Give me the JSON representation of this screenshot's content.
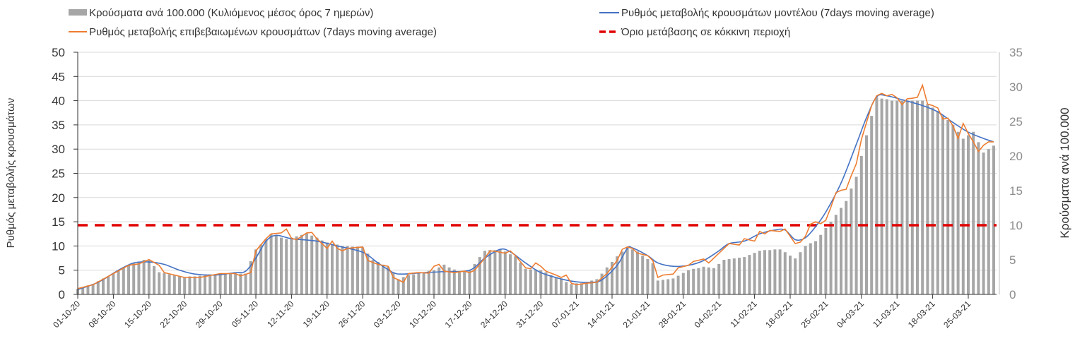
{
  "chart_data": {
    "type": "bar+line",
    "legend": {
      "placement": "top",
      "bars": "Κρούσματα ανά 100.000 (Κυλιόμενος μέσος όρος 7 ημερών)",
      "model": "Ρυθμός μεταβολής κρουσμάτων μοντέλου (7days moving average)",
      "confirmed": "Ρυθμός μεταβολής επιβεβαιωμένων κρουσμάτων (7days moving average)",
      "threshold": "Όριο μετάβασης σε κόκκινη περιοχή"
    },
    "ylabel_left": "Ρυθμός μεταβολής κρουσμάτων",
    "ylabel_right": "Κρούσματα ανά 100.000",
    "ylim_left": [
      0,
      50
    ],
    "ylim_right": [
      0,
      35
    ],
    "yticks_left": [
      "0",
      "5",
      "10",
      "15",
      "20",
      "25",
      "30",
      "35",
      "40",
      "45",
      "50"
    ],
    "yticks_right": [
      "0",
      "5",
      "10",
      "15",
      "20",
      "25",
      "30",
      "35"
    ],
    "xticks": [
      "01-10-20",
      "08-10-20",
      "15-10-20",
      "22-10-20",
      "29-10-20",
      "05-11-20",
      "12-11-20",
      "19-11-20",
      "26-11-20",
      "03-12-20",
      "10-12-20",
      "17-12-20",
      "24-12-20",
      "31-12-20",
      "07-01-21",
      "14-01-21",
      "21-01-21",
      "28-01-21",
      "04-02-21",
      "11-02-21",
      "18-02-21",
      "25-02-21",
      "04-03-21",
      "11-03-21",
      "18-03-21",
      "25-03-21"
    ],
    "x_note": "daily, day index 0 = 01-10-20",
    "threshold_right": 10,
    "colors": {
      "bars": "#a6a6a6",
      "model": "#4472c4",
      "confirmed": "#ed7d31",
      "threshold": "#e00000",
      "grid": "#d9d9d9"
    },
    "bars": [
      0.8,
      1.0,
      1.3,
      1.5,
      1.9,
      2.3,
      2.6,
      3.0,
      3.4,
      3.8,
      4.2,
      4.5,
      4.7,
      5.0,
      5.0,
      4.1,
      3.2,
      3.1,
      2.9,
      2.8,
      2.6,
      2.5,
      2.6,
      2.6,
      2.7,
      2.8,
      2.9,
      2.9,
      3.0,
      3.0,
      3.0,
      3.0,
      3.0,
      3.0,
      4.8,
      6.5,
      7.2,
      8.0,
      8.7,
      8.5,
      8.2,
      8.0,
      8.2,
      8.4,
      8.6,
      8.8,
      8.5,
      8.2,
      7.8,
      7.5,
      7.3,
      7.2,
      7.0,
      7.0,
      6.9,
      6.9,
      6.8,
      5.9,
      5.0,
      4.7,
      4.3,
      4.0,
      3.1,
      2.2,
      2.5,
      2.8,
      2.9,
      3.1,
      3.2,
      3.4,
      3.5,
      3.9,
      4.3,
      3.9,
      3.6,
      3.2,
      3.4,
      3.5,
      4.4,
      5.4,
      6.3,
      6.4,
      6.4,
      6.5,
      6.2,
      5.8,
      5.5,
      4.6,
      3.7,
      3.6,
      3.6,
      3.5,
      3.2,
      2.8,
      2.5,
      2.2,
      1.8,
      1.5,
      1.6,
      1.6,
      1.8,
      2.0,
      2.2,
      3.0,
      3.9,
      4.7,
      5.5,
      6.2,
      6.8,
      6.5,
      6.2,
      5.6,
      5.1,
      4.5,
      2.0,
      2.1,
      2.2,
      2.3,
      2.7,
      3.1,
      3.5,
      3.7,
      3.8,
      4.0,
      3.9,
      3.8,
      4.4,
      5.0,
      5.1,
      5.2,
      5.3,
      5.4,
      5.7,
      6.0,
      6.3,
      6.4,
      6.4,
      6.5,
      6.5,
      6.1,
      5.6,
      5.2,
      6.1,
      7.0,
      7.4,
      7.7,
      8.6,
      9.6,
      10.5,
      11.5,
      12.5,
      13.5,
      15.3,
      17.0,
      20.0,
      23.0,
      25.8,
      28.5,
      28.3,
      28.2,
      28.0,
      28.0,
      28.0,
      28.0,
      28.0,
      28.0,
      28.0,
      27.5,
      27.0,
      26.5,
      25.8,
      25.2,
      24.5,
      23.5,
      22.5,
      23.0,
      23.5,
      22.0,
      20.5,
      21.0,
      21.5
    ],
    "confirmed_points": [
      [
        0,
        1.2
      ],
      [
        3,
        2
      ],
      [
        7,
        4.3
      ],
      [
        10,
        6
      ],
      [
        12,
        6.3
      ],
      [
        14,
        7.2
      ],
      [
        16,
        6
      ],
      [
        17,
        4.5
      ],
      [
        21,
        3.5
      ],
      [
        24,
        3.5
      ],
      [
        28,
        4.3
      ],
      [
        31,
        4.3
      ],
      [
        32,
        3.8
      ],
      [
        34,
        4.5
      ],
      [
        35,
        9
      ],
      [
        37,
        11.5
      ],
      [
        38,
        12.5
      ],
      [
        40,
        12.7
      ],
      [
        41,
        13.5
      ],
      [
        42,
        11.6
      ],
      [
        43,
        11.3
      ],
      [
        45,
        12.7
      ],
      [
        46,
        12.8
      ],
      [
        47,
        11.5
      ],
      [
        48,
        10.5
      ],
      [
        49,
        9.5
      ],
      [
        50,
        11
      ],
      [
        51,
        9.5
      ],
      [
        52,
        9
      ],
      [
        53,
        9.5
      ],
      [
        56,
        9.8
      ],
      [
        57,
        7
      ],
      [
        59,
        6.2
      ],
      [
        61,
        5.8
      ],
      [
        62,
        3.5
      ],
      [
        63,
        3.0
      ],
      [
        64,
        2.5
      ],
      [
        65,
        4.3
      ],
      [
        67,
        4.5
      ],
      [
        69,
        4.4
      ],
      [
        70,
        5.8
      ],
      [
        71,
        6.2
      ],
      [
        72,
        4.8
      ],
      [
        74,
        4.5
      ],
      [
        76,
        4.8
      ],
      [
        77,
        4.5
      ],
      [
        78,
        5
      ],
      [
        80,
        7.5
      ],
      [
        81,
        9.0
      ],
      [
        82,
        8.9
      ],
      [
        84,
        8.5
      ],
      [
        85,
        9
      ],
      [
        86,
        8
      ],
      [
        88,
        5.5
      ],
      [
        89,
        5.3
      ],
      [
        90,
        6.5
      ],
      [
        91,
        5.8
      ],
      [
        92,
        4.8
      ],
      [
        94,
        4
      ],
      [
        95,
        3.5
      ],
      [
        96,
        4
      ],
      [
        97,
        2.3
      ],
      [
        98,
        2.0
      ],
      [
        100,
        2.3
      ],
      [
        102,
        2.5
      ],
      [
        104,
        4.3
      ],
      [
        106,
        7
      ],
      [
        107,
        9.3
      ],
      [
        108,
        9.8
      ],
      [
        109,
        9.5
      ],
      [
        110,
        8.5
      ],
      [
        112,
        8.0
      ],
      [
        113,
        7
      ],
      [
        114,
        3.5
      ],
      [
        115,
        4
      ],
      [
        117,
        4.2
      ],
      [
        118,
        5.5
      ],
      [
        120,
        6.0
      ],
      [
        121,
        6.8
      ],
      [
        123,
        7.3
      ],
      [
        124,
        6.5
      ],
      [
        126,
        8.5
      ],
      [
        127,
        9.5
      ],
      [
        128,
        10.5
      ],
      [
        130,
        10.2
      ],
      [
        131,
        11.5
      ],
      [
        133,
        11
      ],
      [
        134,
        13
      ],
      [
        135,
        12.5
      ],
      [
        136,
        13.2
      ],
      [
        138,
        13
      ],
      [
        139,
        13.5
      ],
      [
        141,
        10.5
      ],
      [
        142,
        10.8
      ],
      [
        143,
        12
      ],
      [
        144,
        14.5
      ],
      [
        145,
        15
      ],
      [
        146,
        14.6
      ],
      [
        147,
        15.3
      ],
      [
        148,
        18
      ],
      [
        149,
        21
      ],
      [
        150,
        21.5
      ],
      [
        151,
        21.7
      ],
      [
        152,
        24.5
      ],
      [
        153,
        27
      ],
      [
        154,
        32
      ],
      [
        155,
        35.5
      ],
      [
        156,
        39
      ],
      [
        157,
        41
      ],
      [
        158,
        41.5
      ],
      [
        159,
        41
      ],
      [
        160,
        41.3
      ],
      [
        161,
        40.6
      ],
      [
        162,
        39.2
      ],
      [
        163,
        40.4
      ],
      [
        164,
        40.5
      ],
      [
        165,
        40.7
      ],
      [
        166,
        43.2
      ],
      [
        167,
        39.3
      ],
      [
        168,
        39
      ],
      [
        169,
        38.5
      ],
      [
        170,
        36.2
      ],
      [
        171,
        36.4
      ],
      [
        172,
        34.8
      ],
      [
        173,
        32.2
      ],
      [
        174,
        35.3
      ],
      [
        175,
        33.2
      ],
      [
        176,
        31.5
      ],
      [
        177,
        29.5
      ],
      [
        178,
        30.8
      ],
      [
        179,
        31.5
      ],
      [
        180,
        31.5
      ]
    ],
    "model_points": [
      [
        0,
        1
      ],
      [
        4,
        2.5
      ],
      [
        8,
        5
      ],
      [
        11,
        6.5
      ],
      [
        14,
        6.7
      ],
      [
        17,
        6.2
      ],
      [
        20,
        5
      ],
      [
        23,
        4.2
      ],
      [
        27,
        4
      ],
      [
        31,
        4.5
      ],
      [
        33,
        4.8
      ],
      [
        35,
        7.5
      ],
      [
        37,
        11
      ],
      [
        39,
        12.2
      ],
      [
        42,
        11.5
      ],
      [
        47,
        11
      ],
      [
        51,
        10
      ],
      [
        56,
        8.7
      ],
      [
        59,
        6.5
      ],
      [
        62,
        4.5
      ],
      [
        64,
        4.2
      ],
      [
        68,
        4.5
      ],
      [
        72,
        4.7
      ],
      [
        77,
        5
      ],
      [
        80,
        7.5
      ],
      [
        83,
        9.3
      ],
      [
        85,
        8.8
      ],
      [
        88,
        6.5
      ],
      [
        91,
        4.5
      ],
      [
        95,
        3.2
      ],
      [
        98,
        2.6
      ],
      [
        101,
        2.5
      ],
      [
        103,
        3
      ],
      [
        106,
        6
      ],
      [
        108,
        9.5
      ],
      [
        109,
        9.6
      ],
      [
        112,
        8
      ],
      [
        114,
        6.5
      ],
      [
        117,
        5.8
      ],
      [
        120,
        6
      ],
      [
        123,
        7
      ],
      [
        126,
        9
      ],
      [
        128,
        10.5
      ],
      [
        131,
        11
      ],
      [
        134,
        12.5
      ],
      [
        137,
        13.3
      ],
      [
        139,
        13.3
      ],
      [
        141,
        11.3
      ],
      [
        143,
        11.7
      ],
      [
        145,
        14
      ],
      [
        147,
        17
      ],
      [
        150,
        23
      ],
      [
        153,
        31
      ],
      [
        155,
        36.5
      ],
      [
        157,
        40.8
      ],
      [
        159,
        41
      ],
      [
        162,
        40.2
      ],
      [
        166,
        39
      ],
      [
        169,
        37.7
      ],
      [
        172,
        35.5
      ],
      [
        175,
        33.5
      ],
      [
        178,
        32.2
      ],
      [
        180,
        31.5
      ]
    ]
  }
}
